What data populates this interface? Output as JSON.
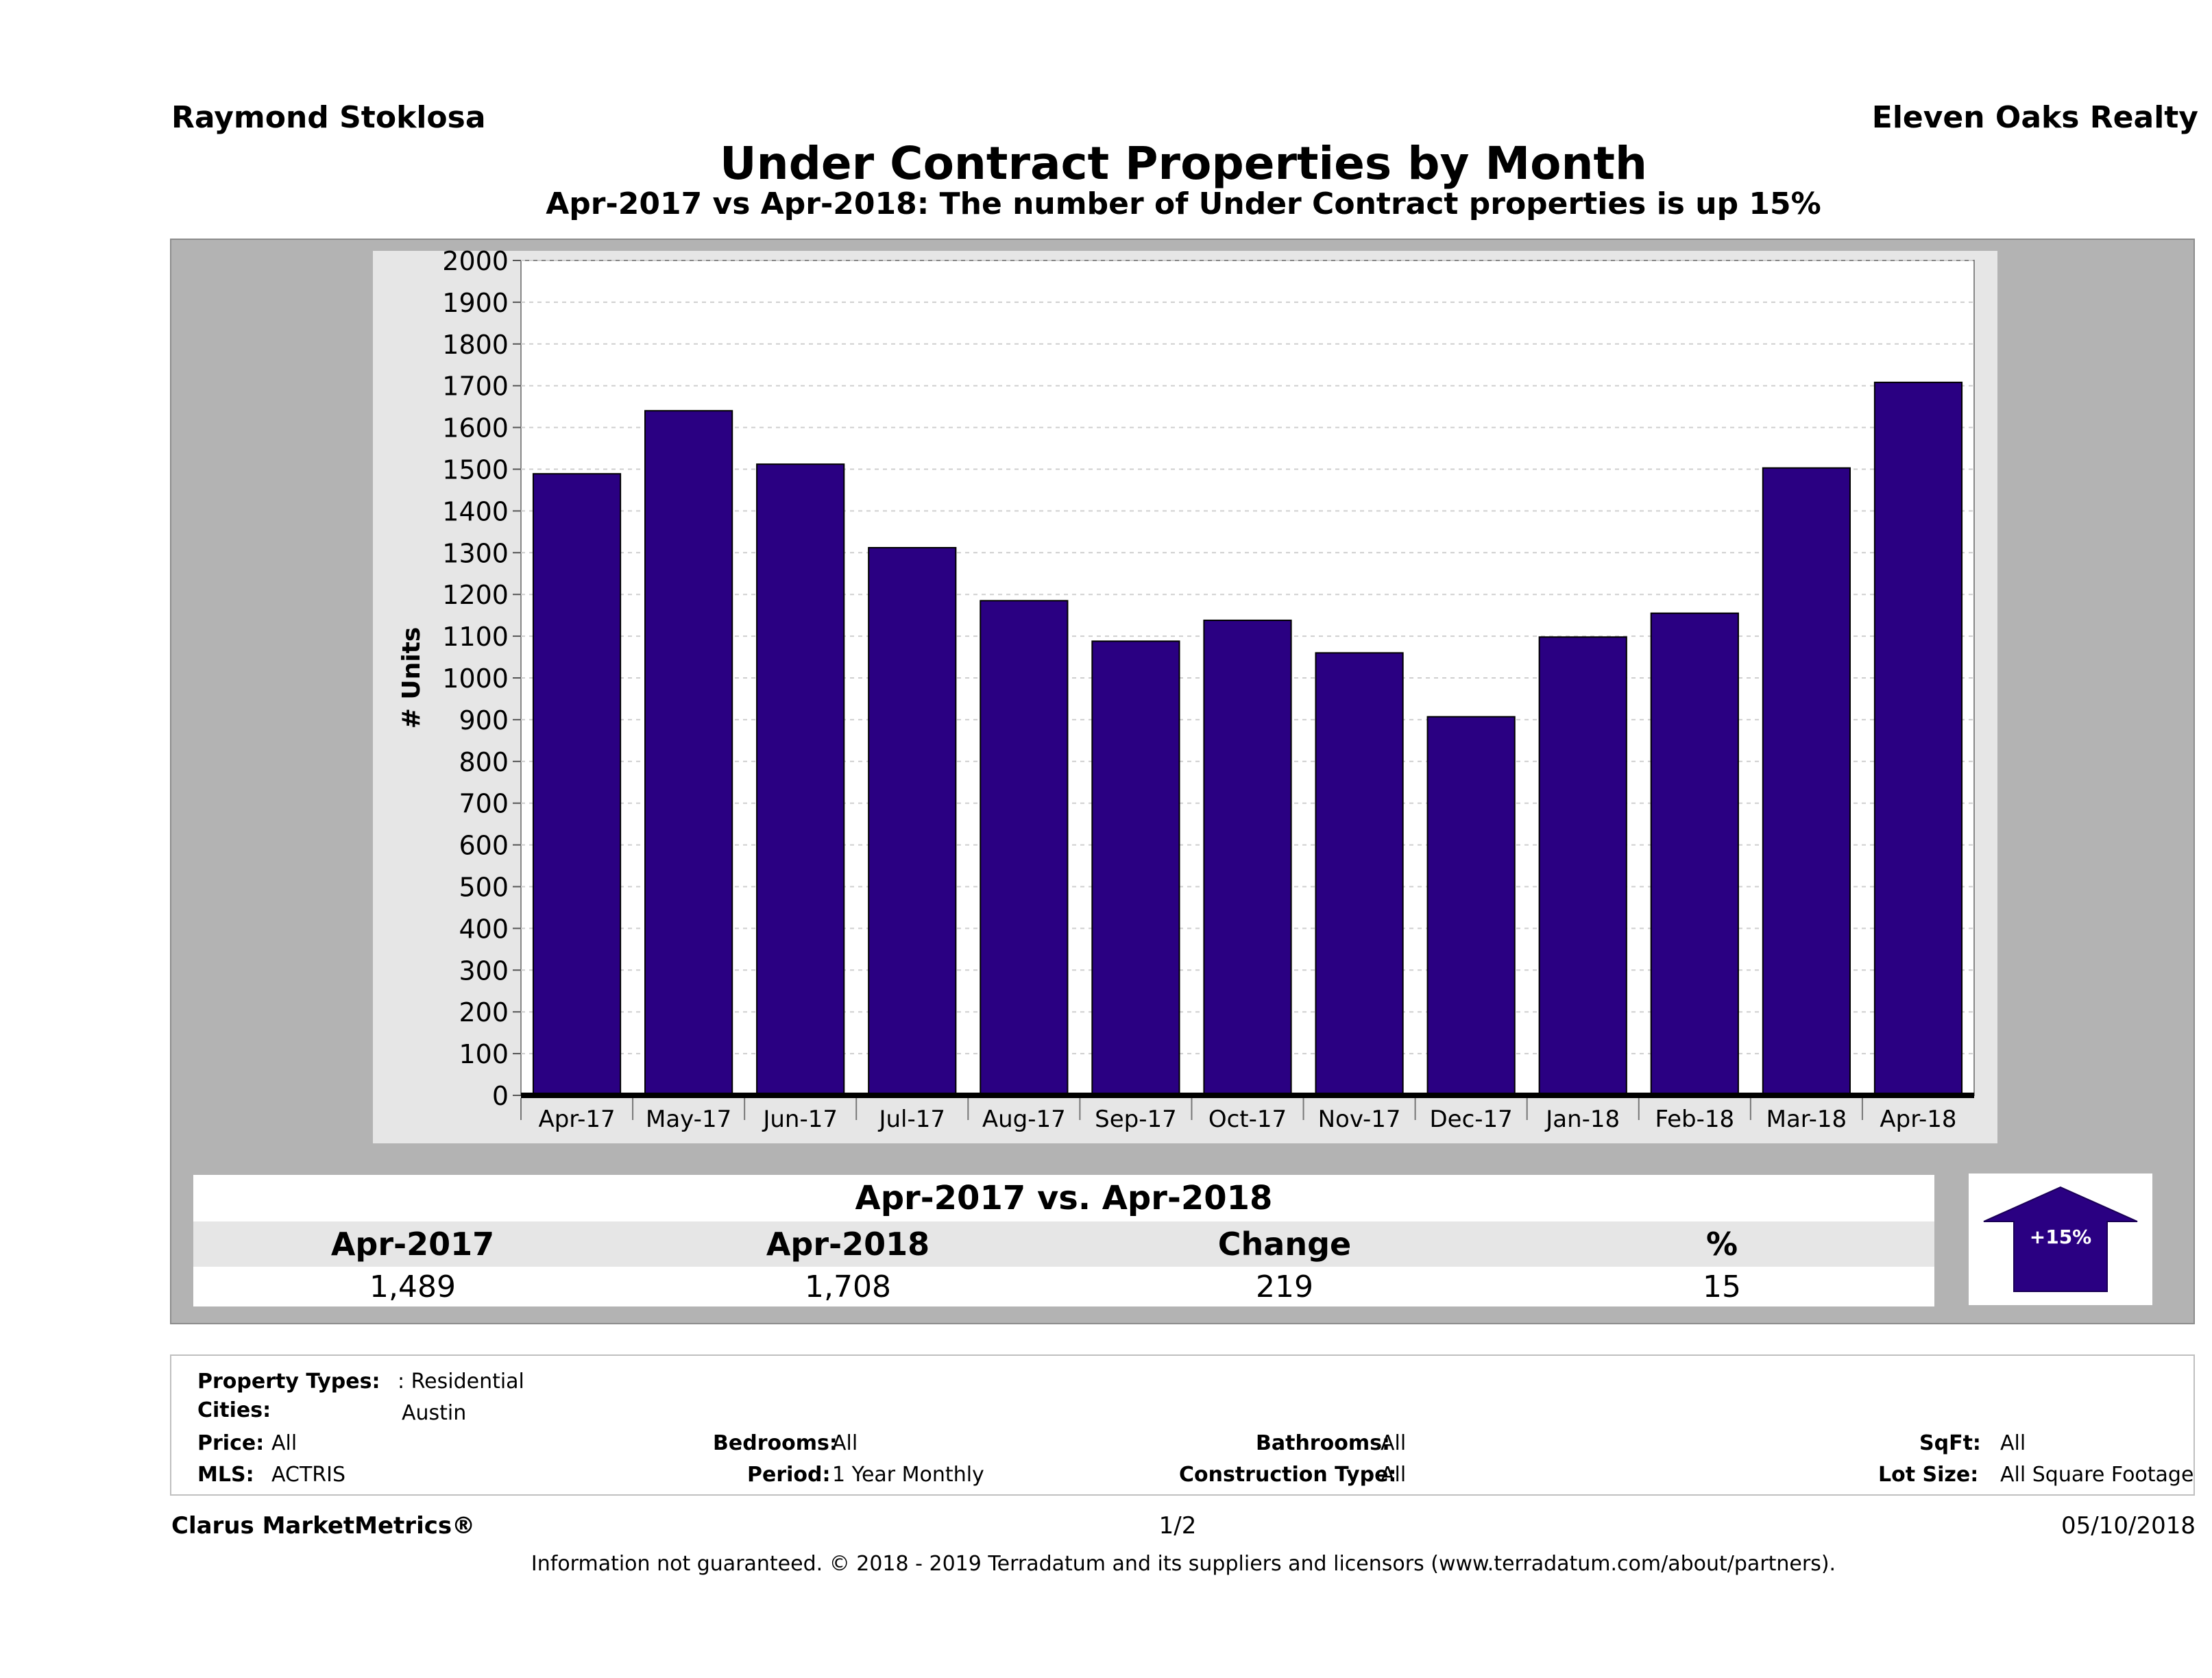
{
  "header": {
    "agent_name": "Raymond Stoklosa",
    "brokerage": "Eleven Oaks Realty",
    "title": "Under Contract Properties by Month",
    "subtitle": "Apr-2017 vs Apr-2018: The number of Under Contract  properties is up 15%"
  },
  "chart_data": {
    "type": "bar",
    "ylabel": "# Units",
    "ylim": [
      0,
      2000
    ],
    "yticks": [
      "0",
      "100",
      "200",
      "300",
      "400",
      "500",
      "600",
      "700",
      "800",
      "900",
      "1000",
      "1100",
      "1200",
      "1300",
      "1400",
      "1500",
      "1600",
      "1700",
      "1800",
      "1900",
      "2000"
    ],
    "categories": [
      "Apr-17",
      "May-17",
      "Jun-17",
      "Jul-17",
      "Aug-17",
      "Sep-17",
      "Oct-17",
      "Nov-17",
      "Dec-17",
      "Jan-18",
      "Feb-18",
      "Mar-18",
      "Apr-18"
    ],
    "values": [
      1489,
      1640,
      1512,
      1312,
      1185,
      1088,
      1138,
      1060,
      907,
      1098,
      1155,
      1503,
      1708
    ],
    "grid": true,
    "bar_color": "#2a0082"
  },
  "summary": {
    "title": "Apr-2017 vs. Apr-2018",
    "headers": [
      "Apr-2017",
      "Apr-2018",
      "Change",
      "%"
    ],
    "values": [
      "1,489",
      "1,708",
      "219",
      "15"
    ],
    "badge": "+15%",
    "badge_color": "#2a0082"
  },
  "info": {
    "property_types_label": "Property Types:",
    "property_types_value": ": Residential",
    "cities_label": "Cities:",
    "cities_value": "Austin",
    "price_label": "Price:",
    "price_value": "All",
    "bedrooms_label": "Bedrooms:",
    "bedrooms_value": "All",
    "bathrooms_label": "Bathrooms:",
    "bathrooms_value": "All",
    "sqft_label": "SqFt:",
    "sqft_value": "All",
    "mls_label": "MLS:",
    "mls_value": "ACTRIS",
    "period_label": "Period:",
    "period_value": "1 Year Monthly",
    "construction_label": "Construction Type:",
    "construction_value": "All",
    "lot_size_label": "Lot Size:",
    "lot_size_value": "All Square Footage"
  },
  "footer": {
    "brand": "Clarus MarketMetrics®",
    "page": "1/2",
    "date": "05/10/2018",
    "disclaimer": "Information not guaranteed. © 2018 - 2019 Terradatum and its suppliers and licensors (www.terradatum.com/about/partners)."
  }
}
